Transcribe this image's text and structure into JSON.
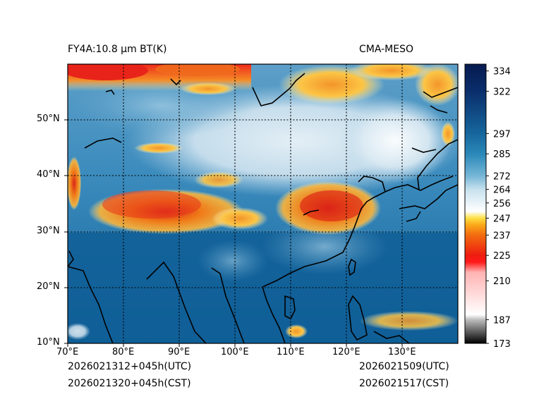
{
  "title_left": "FY4A:10.8 µm BT(K)",
  "title_right": "CMA-MESO",
  "lat_labels": [
    "10°N",
    "20°N",
    "30°N",
    "40°N",
    "50°N"
  ],
  "lon_labels": [
    "70°E",
    "80°E",
    "90°E",
    "100°E",
    "110°E",
    "120°E",
    "130°E"
  ],
  "colorbar": {
    "ticks": [
      "334",
      "322",
      "297",
      "285",
      "272",
      "264",
      "256",
      "247",
      "237",
      "225",
      "210",
      "187",
      "173"
    ],
    "min": 173,
    "max": 338,
    "stops": [
      {
        "v": 173,
        "c": "#000000"
      },
      {
        "v": 187,
        "c": "#bdbdbd"
      },
      {
        "v": 190,
        "c": "#ffffff"
      },
      {
        "v": 215,
        "c": "#ffb3b3"
      },
      {
        "v": 221,
        "c": "#ff1a1a"
      },
      {
        "v": 225,
        "c": "#ee1c10"
      },
      {
        "v": 237,
        "c": "#f26c10"
      },
      {
        "v": 243,
        "c": "#fba81a"
      },
      {
        "v": 247,
        "c": "#fde043"
      },
      {
        "v": 251,
        "c": "#ffffff"
      },
      {
        "v": 264,
        "c": "#c7e1ee"
      },
      {
        "v": 272,
        "c": "#75b6d6"
      },
      {
        "v": 285,
        "c": "#2a88b8"
      },
      {
        "v": 297,
        "c": "#16669c"
      },
      {
        "v": 322,
        "c": "#0a2e6b"
      },
      {
        "v": 338,
        "c": "#061a50"
      }
    ]
  },
  "footer": {
    "left_line1": "2026021312+045h(UTC)",
    "left_line2": "2026021320+045h(CST)",
    "right_line1": "2026021509(UTC)",
    "right_line2": "2026021517(CST)"
  },
  "colors": {
    "sea_deep": "#0f5e97",
    "land_mid": "#2d86b6",
    "land_light": "#d4e7f1",
    "cold_cloud": "#f07318",
    "very_cold": "#e8301a",
    "grid": "#000000"
  }
}
